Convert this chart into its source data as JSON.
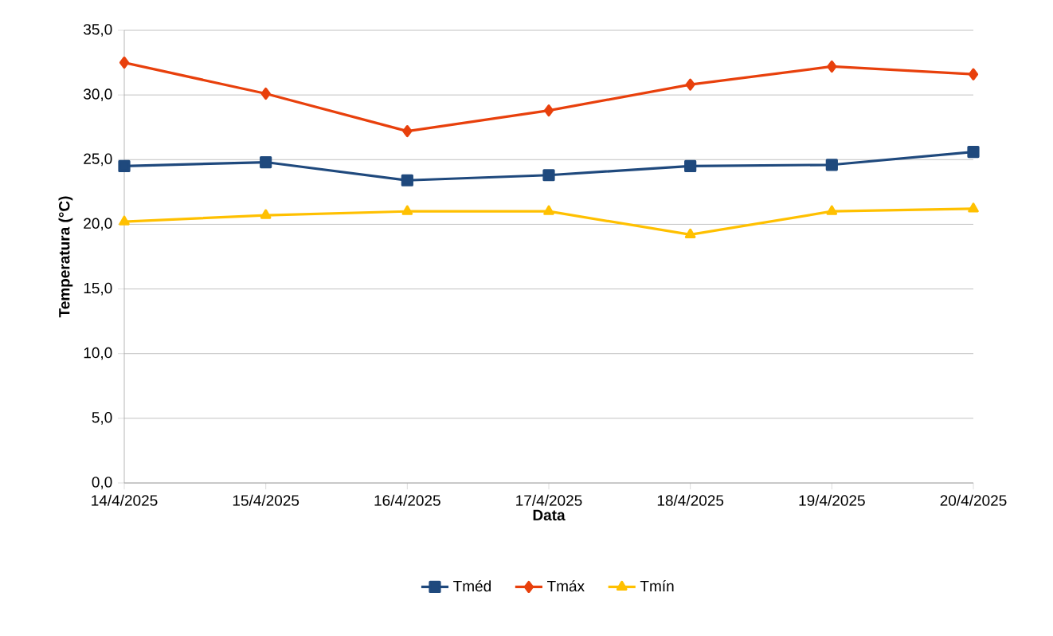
{
  "chart_data": {
    "type": "line",
    "xlabel": "Data",
    "ylabel": "Temperatura (°C)",
    "categories": [
      "14/4/2025",
      "15/4/2025",
      "16/4/2025",
      "17/4/2025",
      "18/4/2025",
      "19/4/2025",
      "20/4/2025"
    ],
    "series": [
      {
        "name": "Tméd",
        "color": "#1f497d",
        "marker": "square",
        "values": [
          24.5,
          24.8,
          23.4,
          23.8,
          24.5,
          24.6,
          25.6
        ]
      },
      {
        "name": "Tmáx",
        "color": "#e8400c",
        "marker": "diamond",
        "values": [
          32.5,
          30.1,
          27.2,
          28.8,
          30.8,
          32.2,
          31.6
        ]
      },
      {
        "name": "Tmín",
        "color": "#ffc000",
        "marker": "triangle",
        "values": [
          20.2,
          20.7,
          21.0,
          21.0,
          19.2,
          21.0,
          21.2
        ]
      }
    ],
    "ylim": [
      0,
      35
    ],
    "yticks": [
      {
        "value": 0,
        "label": "0,0"
      },
      {
        "value": 5,
        "label": "5,0"
      },
      {
        "value": 10,
        "label": "10,0"
      },
      {
        "value": 15,
        "label": "15,0"
      },
      {
        "value": 20,
        "label": "20,0"
      },
      {
        "value": 25,
        "label": "25,0"
      },
      {
        "value": 30,
        "label": "30,0"
      },
      {
        "value": 35,
        "label": "35,0"
      }
    ],
    "grid": "y",
    "legend": "bottom",
    "line_style": "solid"
  }
}
